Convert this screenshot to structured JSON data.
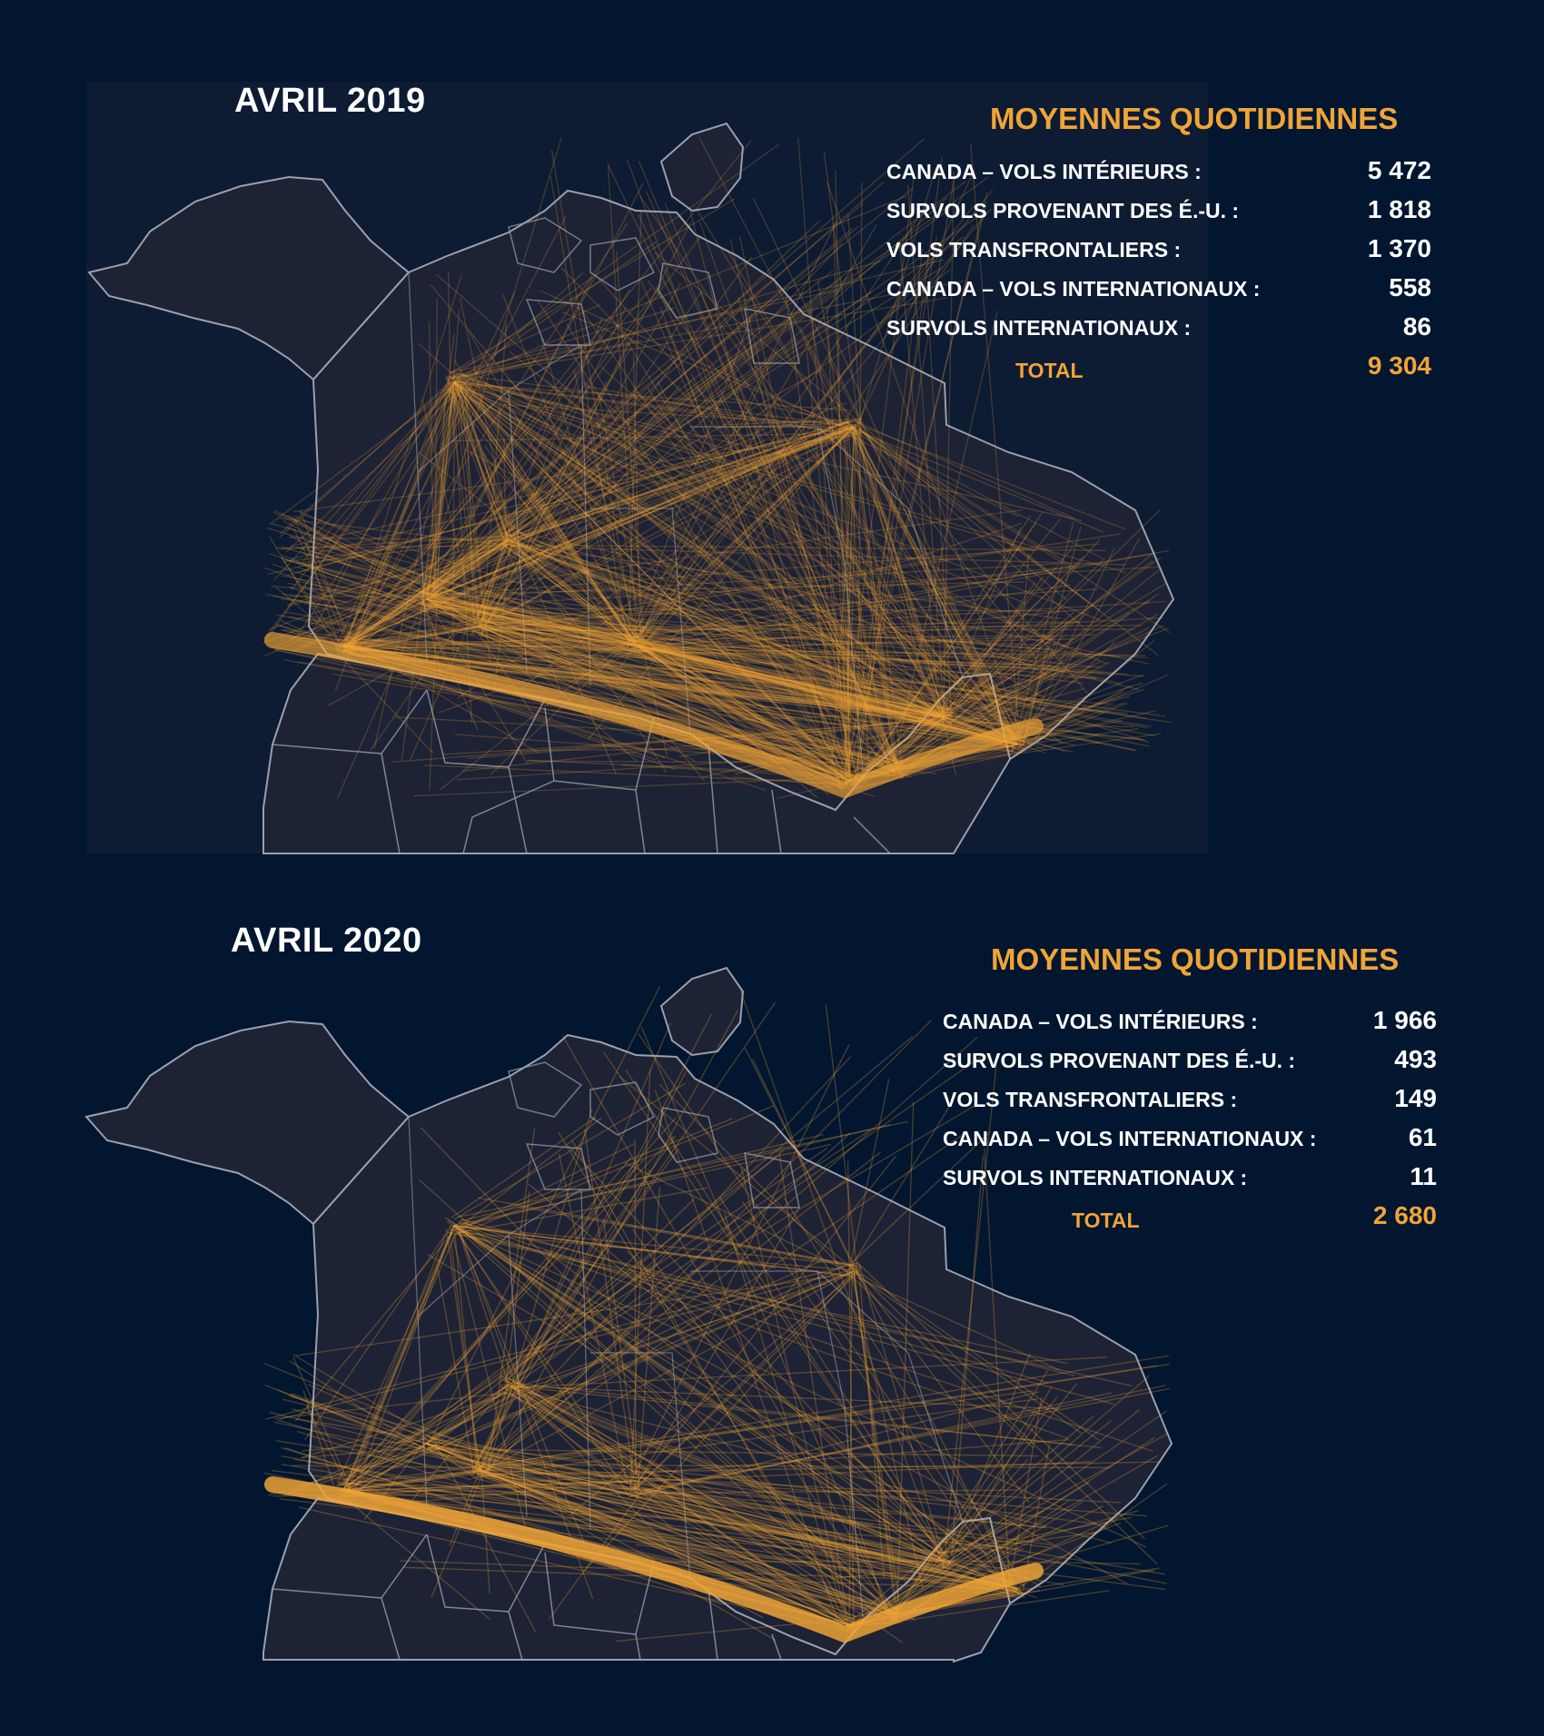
{
  "panels": [
    {
      "title": "AVRIL 2019",
      "stats_heading": "MOYENNES QUOTIDIENNES",
      "stats": [
        {
          "label": "CANADA – VOLS INTÉRIEURS :",
          "value": "5 472"
        },
        {
          "label": "SURVOLS PROVENANT DES É.-U. :",
          "value": "1 818"
        },
        {
          "label": "VOLS TRANSFRONTALIERS :",
          "value": "1 370"
        },
        {
          "label": "CANADA – VOLS INTERNATIONAUX :",
          "value": "558"
        },
        {
          "label": "SURVOLS INTERNATIONAUX :",
          "value": "86"
        }
      ],
      "total_label": "TOTAL",
      "total_value": "9 304"
    },
    {
      "title": "AVRIL 2020",
      "stats_heading": "MOYENNES QUOTIDIENNES",
      "stats": [
        {
          "label": "CANADA – VOLS INTÉRIEURS :",
          "value": "1 966"
        },
        {
          "label": "SURVOLS PROVENANT DES É.-U. :",
          "value": "493"
        },
        {
          "label": "VOLS TRANSFRONTALIERS :",
          "value": "149"
        },
        {
          "label": "CANADA – VOLS INTERNATIONAUX :",
          "value": "61"
        },
        {
          "label": "SURVOLS INTERNATIONAUX :",
          "value": "11"
        }
      ],
      "total_label": "TOTAL",
      "total_value": "2 680"
    }
  ],
  "colors": {
    "background": "#021630",
    "map_land": "#1d2235",
    "borders": "#9aa0ad",
    "flight_lines": "#f0a437"
  }
}
